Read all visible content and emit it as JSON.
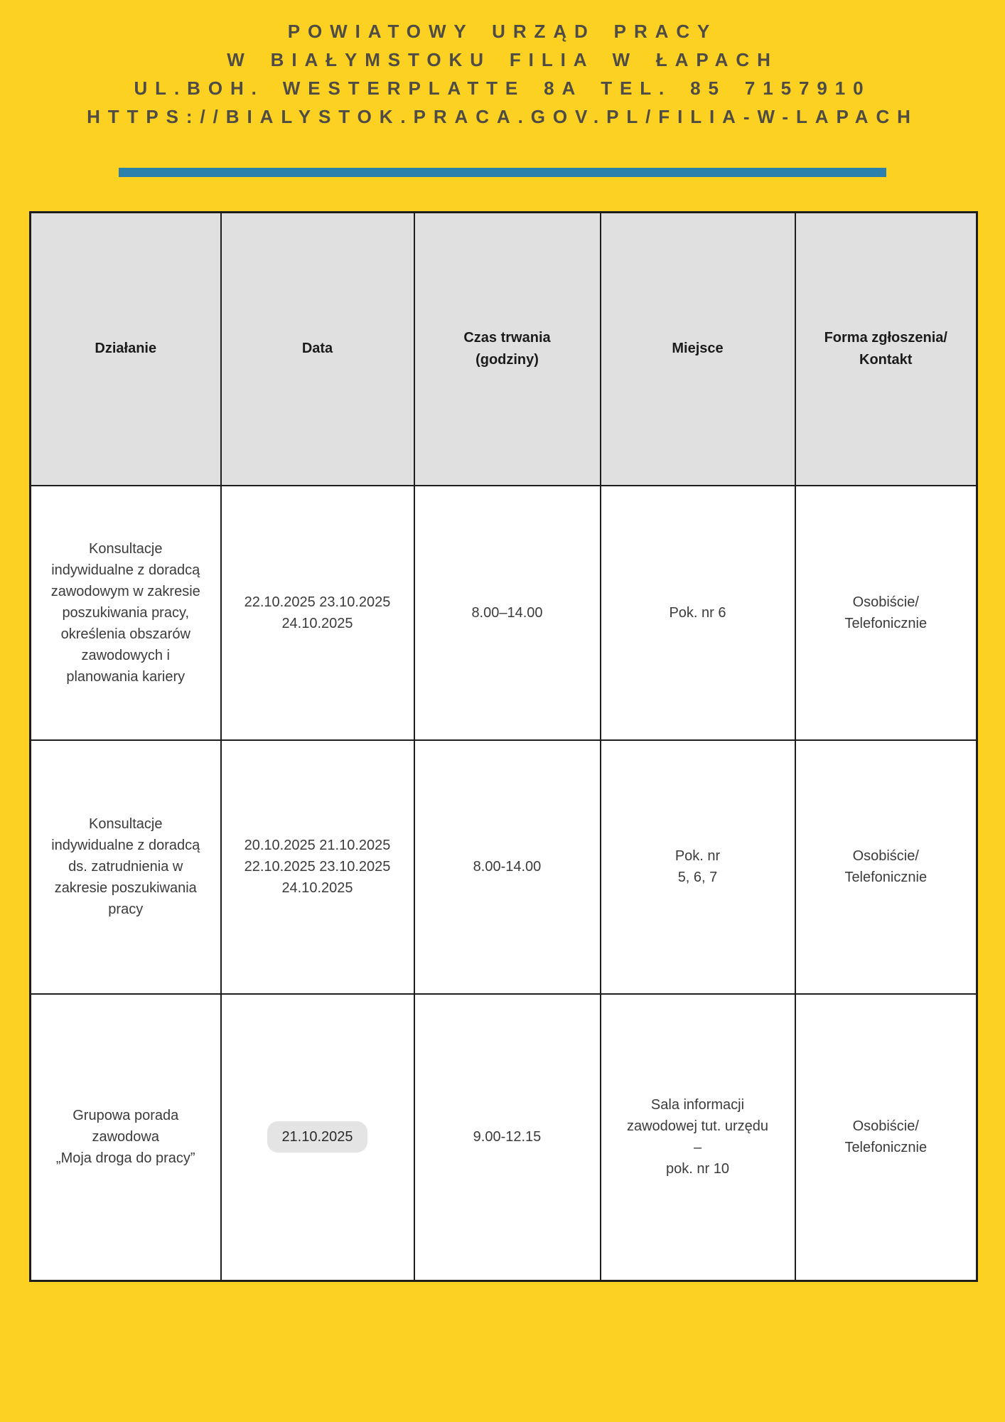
{
  "header": {
    "line1": "POWIATOWY URZĄD PRACY",
    "line2": "W BIAŁYMSTOKU FILIA W ŁAPACH",
    "line3": "UL.BOH. WESTERPLATTE 8A TEL. 85 7157910",
    "line4": "HTTPS://BIALYSTOK.PRACA.GOV.PL/FILIA-W-LAPACH"
  },
  "colors": {
    "page_background": "#FCD121",
    "divider_bar": "#2B80AC",
    "table_header_background": "#E0E0E0",
    "table_border": "#1E1E1E",
    "date_highlight": "#E4E4E4",
    "header_text": "#4E4C44"
  },
  "table": {
    "columns": {
      "activity": "Działanie",
      "date": "Data",
      "duration": "Czas trwania\n(godziny)",
      "place": "Miejsce",
      "contact": "Forma zgłoszenia/\nKontakt"
    },
    "rows": [
      {
        "activity": "Konsultacje\nindywidualne z doradcą\nzawodowym w zakresie\nposzukiwania pracy,\nokreślenia obszarów\nzawodowych i\nplanowania kariery",
        "date": "22.10.2025 23.10.2025\n24.10.2025",
        "duration": "8.00–14.00",
        "place": "Pok. nr 6",
        "contact": "Osobiście/\nTelefonicznie"
      },
      {
        "activity": "Konsultacje\nindywidualne z doradcą\nds. zatrudnienia w\nzakresie poszukiwania\npracy",
        "date": "20.10.2025 21.10.2025\n22.10.2025 23.10.2025\n24.10.2025",
        "duration": "8.00-14.00",
        "place": "Pok. nr\n5, 6, 7",
        "contact": "Osobiście/\nTelefonicznie"
      },
      {
        "activity": "Grupowa porada\nzawodowa\n„Moja droga do pracy”",
        "date": "21.10.2025",
        "duration": "9.00-12.15",
        "place": "Sala informacji\nzawodowej tut. urzędu\n–\npok. nr 10",
        "contact": "Osobiście/\nTelefonicznie"
      }
    ]
  }
}
